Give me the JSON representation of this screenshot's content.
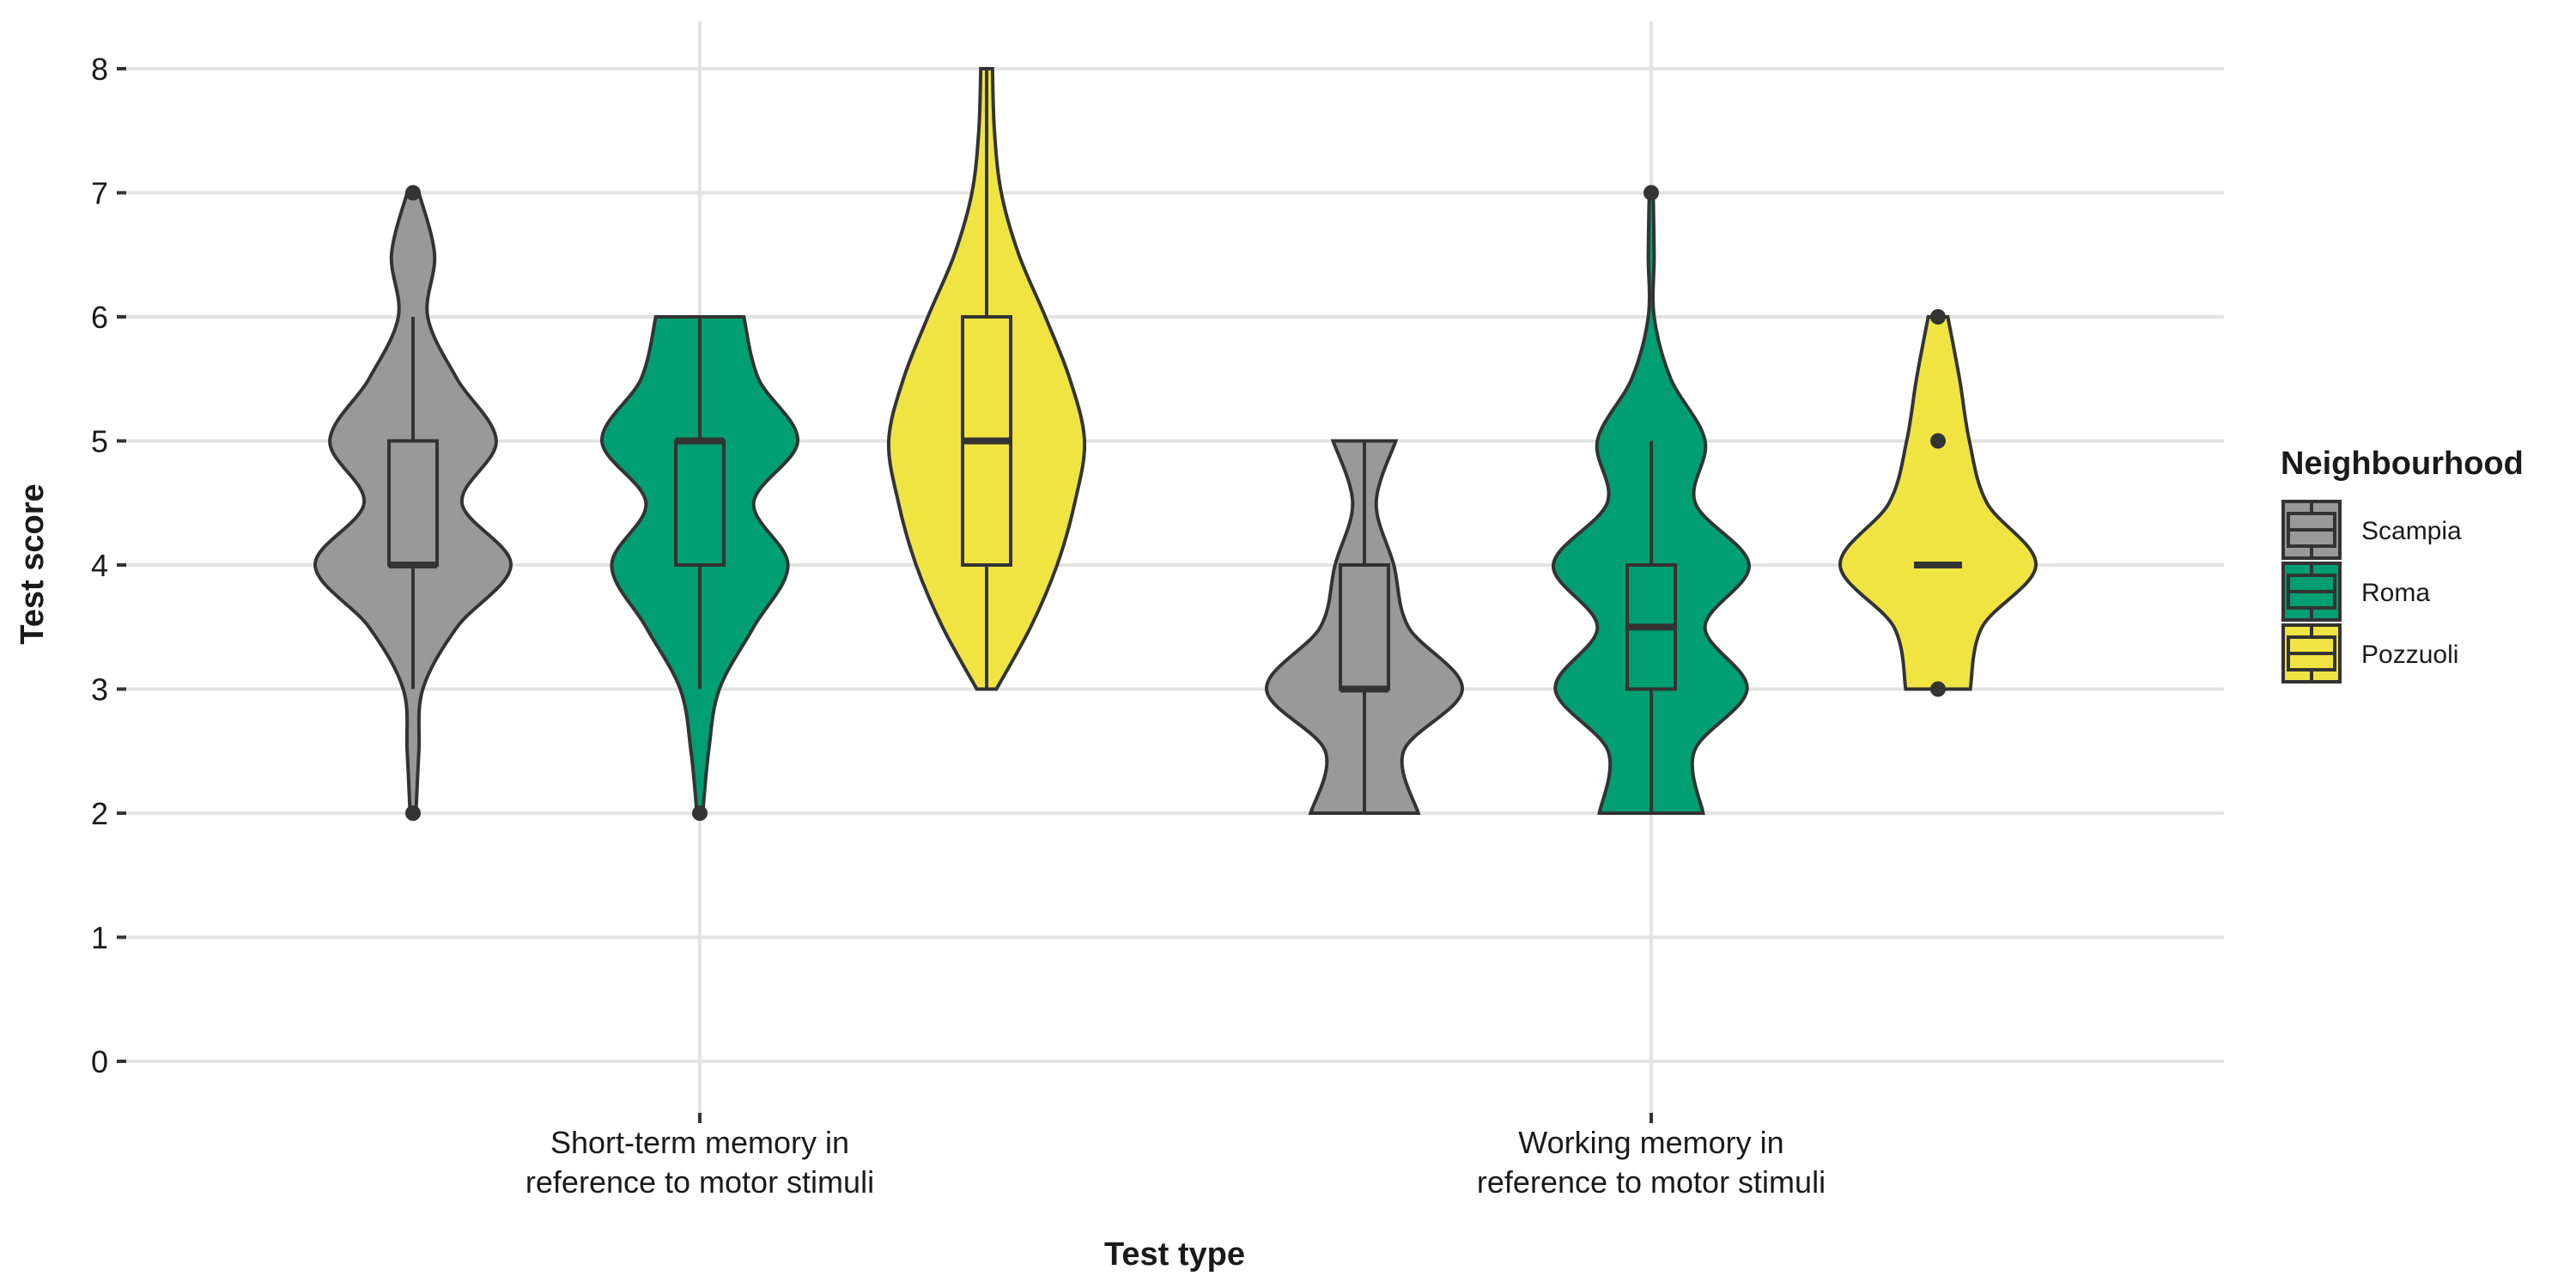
{
  "chart_data": {
    "type": "violin",
    "xlabel": "Test type",
    "ylabel": "Test score",
    "ylim": [
      0,
      8
    ],
    "yticks": [
      0,
      1,
      2,
      3,
      4,
      5,
      6,
      7,
      8
    ],
    "grid": true,
    "legend": {
      "title": "Neighbourhood",
      "position": "right"
    },
    "categories": [
      [
        "Short-term memory in",
        "reference to motor stimuli"
      ],
      [
        "Working memory in",
        "reference to motor stimuli"
      ]
    ],
    "series": [
      {
        "name": "Scampia",
        "color": "#999999",
        "groups": [
          {
            "min": 2,
            "max": 7,
            "q1": 4,
            "median": 4,
            "q3": 5,
            "whisker_low": 3,
            "whisker_high": 6,
            "outliers": [
              2,
              7
            ],
            "density": [
              [
                2,
                0.03
              ],
              [
                2.5,
                0.06
              ],
              [
                3,
                0.1
              ],
              [
                3.5,
                0.45
              ],
              [
                4,
                1.0
              ],
              [
                4.5,
                0.5
              ],
              [
                5,
                0.85
              ],
              [
                5.5,
                0.45
              ],
              [
                6,
                0.15
              ],
              [
                6.5,
                0.22
              ],
              [
                7,
                0.06
              ]
            ]
          },
          {
            "min": 2,
            "max": 5,
            "q1": 3,
            "median": 3,
            "q3": 4,
            "whisker_low": 2,
            "whisker_high": 5,
            "outliers": [],
            "density": [
              [
                2,
                0.55
              ],
              [
                2.5,
                0.4
              ],
              [
                3,
                1.0
              ],
              [
                3.5,
                0.45
              ],
              [
                4,
                0.3
              ],
              [
                4.5,
                0.12
              ],
              [
                5,
                0.32
              ]
            ]
          }
        ]
      },
      {
        "name": "Roma",
        "color": "#009E73",
        "groups": [
          {
            "min": 2,
            "max": 6,
            "q1": 4,
            "median": 5,
            "q3": 5,
            "whisker_low": 3,
            "whisker_high": 6,
            "outliers": [
              2
            ],
            "density": [
              [
                2,
                0.03
              ],
              [
                2.5,
                0.09
              ],
              [
                3,
                0.2
              ],
              [
                3.5,
                0.55
              ],
              [
                4,
                0.9
              ],
              [
                4.5,
                0.55
              ],
              [
                5,
                1.0
              ],
              [
                5.5,
                0.6
              ],
              [
                6,
                0.45
              ]
            ]
          },
          {
            "min": 2,
            "max": 7,
            "q1": 3,
            "median": 3.5,
            "q3": 4,
            "whisker_low": 2,
            "whisker_high": 5,
            "outliers": [
              7
            ],
            "density": [
              [
                2,
                0.53
              ],
              [
                2.5,
                0.44
              ],
              [
                3,
                0.98
              ],
              [
                3.5,
                0.55
              ],
              [
                4,
                1.0
              ],
              [
                4.5,
                0.45
              ],
              [
                5,
                0.55
              ],
              [
                5.5,
                0.2
              ],
              [
                6,
                0.03
              ],
              [
                6.5,
                0.03
              ],
              [
                7,
                0.02
              ]
            ]
          }
        ]
      },
      {
        "name": "Pozzuoli",
        "color": "#F0E442",
        "groups": [
          {
            "min": 3,
            "max": 8,
            "q1": 4,
            "median": 5,
            "q3": 6,
            "whisker_low": 3,
            "whisker_high": 8,
            "outliers": [],
            "density": [
              [
                3,
                0.1
              ],
              [
                3.5,
                0.45
              ],
              [
                4,
                0.72
              ],
              [
                4.5,
                0.9
              ],
              [
                5,
                1.0
              ],
              [
                5.5,
                0.85
              ],
              [
                6,
                0.6
              ],
              [
                6.5,
                0.33
              ],
              [
                7,
                0.15
              ],
              [
                7.5,
                0.08
              ],
              [
                8,
                0.06
              ]
            ]
          },
          {
            "min": 3,
            "max": 6,
            "q1": 4,
            "median": 4,
            "q3": 4,
            "whisker_low": 4,
            "whisker_high": 4,
            "outliers": [
              3,
              5,
              6
            ],
            "density": [
              [
                3,
                0.33
              ],
              [
                3.5,
                0.45
              ],
              [
                4,
                1.0
              ],
              [
                4.5,
                0.5
              ],
              [
                5,
                0.32
              ],
              [
                5.5,
                0.22
              ],
              [
                6,
                0.1
              ]
            ]
          }
        ]
      }
    ]
  }
}
